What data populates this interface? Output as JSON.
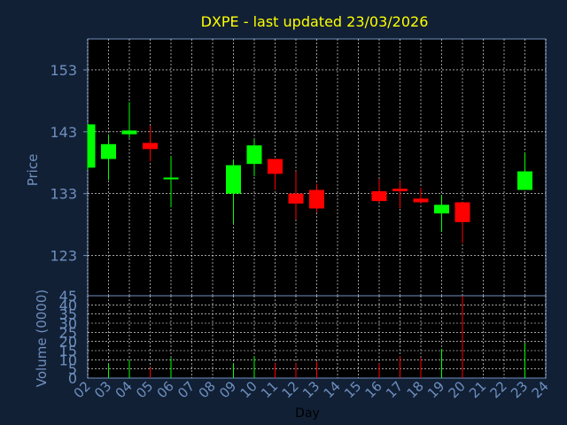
{
  "chart_data": [
    {
      "type": "candlestick",
      "title": "DXPE - last updated 23/03/2026",
      "ylabel": "Price",
      "ylim": [
        116.5,
        158
      ],
      "yticks": [
        123,
        133,
        143,
        153
      ],
      "grid": true,
      "x_ticks": [
        "02",
        "03",
        "04",
        "05",
        "06",
        "07",
        "08",
        "09",
        "10",
        "11",
        "12",
        "13",
        "14",
        "15",
        "16",
        "17",
        "18",
        "19",
        "20",
        "21",
        "22",
        "23",
        "24"
      ],
      "candles": [
        {
          "day": "02",
          "open": 137.2,
          "high": 144.2,
          "low": 136.8,
          "close": 144.2
        },
        {
          "day": "03",
          "open": 138.6,
          "high": 142.6,
          "low": 135.2,
          "close": 141.0
        },
        {
          "day": "04",
          "open": 142.6,
          "high": 147.8,
          "low": 142.0,
          "close": 143.2
        },
        {
          "day": "05",
          "open": 141.2,
          "high": 144.0,
          "low": 138.2,
          "close": 140.2
        },
        {
          "day": "06",
          "open": 135.4,
          "high": 139.0,
          "low": 130.8,
          "close": 135.6
        },
        {
          "day": "09",
          "open": 133.0,
          "high": 138.4,
          "low": 128.2,
          "close": 137.6
        },
        {
          "day": "10",
          "open": 137.8,
          "high": 141.8,
          "low": 135.8,
          "close": 140.8
        },
        {
          "day": "11",
          "open": 138.6,
          "high": 138.6,
          "low": 133.6,
          "close": 136.2
        },
        {
          "day": "12",
          "open": 133.0,
          "high": 136.6,
          "low": 128.8,
          "close": 131.4
        },
        {
          "day": "13",
          "open": 133.6,
          "high": 134.6,
          "low": 130.0,
          "close": 130.6
        },
        {
          "day": "16",
          "open": 133.4,
          "high": 135.4,
          "low": 131.6,
          "close": 131.8
        },
        {
          "day": "17",
          "open": 133.8,
          "high": 135.0,
          "low": 130.6,
          "close": 133.4
        },
        {
          "day": "18",
          "open": 132.2,
          "high": 134.0,
          "low": 131.4,
          "close": 131.6
        },
        {
          "day": "19",
          "open": 129.8,
          "high": 132.8,
          "low": 126.8,
          "close": 131.2
        },
        {
          "day": "20",
          "open": 131.6,
          "high": 131.6,
          "low": 125.0,
          "close": 128.4
        },
        {
          "day": "23",
          "open": 133.6,
          "high": 139.6,
          "low": 133.6,
          "close": 136.6
        }
      ],
      "colors": {
        "up": "#00ff00",
        "down": "#ff0000",
        "grid": "#ffffff",
        "axis": "#6f8fbf"
      }
    },
    {
      "type": "bar",
      "ylabel": "Volume (0000)",
      "xlabel": "Day",
      "ylim": [
        0,
        45
      ],
      "yticks": [
        0,
        5,
        10,
        15,
        20,
        25,
        30,
        35,
        40,
        45
      ],
      "x_ticks": [
        "02",
        "03",
        "04",
        "05",
        "06",
        "07",
        "08",
        "09",
        "10",
        "11",
        "12",
        "13",
        "14",
        "15",
        "16",
        "17",
        "18",
        "19",
        "20",
        "21",
        "22",
        "23",
        "24"
      ],
      "bars": [
        {
          "day": "03",
          "value": 8,
          "direction": "up"
        },
        {
          "day": "04",
          "value": 10,
          "direction": "up"
        },
        {
          "day": "05",
          "value": 6,
          "direction": "down"
        },
        {
          "day": "06",
          "value": 11,
          "direction": "up"
        },
        {
          "day": "09",
          "value": 8,
          "direction": "up"
        },
        {
          "day": "10",
          "value": 12,
          "direction": "up"
        },
        {
          "day": "11",
          "value": 8,
          "direction": "down"
        },
        {
          "day": "12",
          "value": 8,
          "direction": "down"
        },
        {
          "day": "13",
          "value": 9,
          "direction": "down"
        },
        {
          "day": "16",
          "value": 8,
          "direction": "down"
        },
        {
          "day": "17",
          "value": 12,
          "direction": "down"
        },
        {
          "day": "18",
          "value": 11,
          "direction": "down"
        },
        {
          "day": "19",
          "value": 16,
          "direction": "up"
        },
        {
          "day": "20",
          "value": 45,
          "direction": "down"
        },
        {
          "day": "23",
          "value": 19,
          "direction": "up"
        }
      ]
    }
  ]
}
